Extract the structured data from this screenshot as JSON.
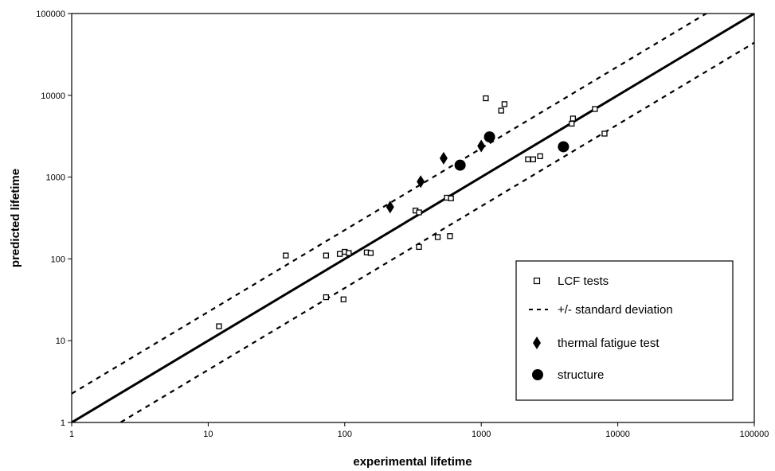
{
  "chart_data": {
    "type": "scatter",
    "title": "",
    "xlabel": "experimental lifetime",
    "ylabel": "predicted lifetime",
    "x_scale": "log",
    "y_scale": "log",
    "xlim": [
      1,
      100000
    ],
    "ylim": [
      1,
      100000
    ],
    "x_ticks": [
      "1",
      "10",
      "100",
      "1000",
      "10000",
      "100000"
    ],
    "y_ticks": [
      "1",
      "10",
      "100",
      "1000",
      "10000",
      "100000"
    ],
    "grid": false,
    "legend_position": "right",
    "series": [
      {
        "name": "LCF tests",
        "marker": "open-square",
        "color": "#000000",
        "points": [
          [
            12,
            15
          ],
          [
            37,
            110
          ],
          [
            73,
            110
          ],
          [
            73,
            34
          ],
          [
            92,
            115
          ],
          [
            98,
            32
          ],
          [
            100,
            122
          ],
          [
            107,
            118
          ],
          [
            145,
            120
          ],
          [
            155,
            118
          ],
          [
            330,
            390
          ],
          [
            350,
            370
          ],
          [
            350,
            140
          ],
          [
            480,
            185
          ],
          [
            560,
            560
          ],
          [
            600,
            550
          ],
          [
            590,
            190
          ],
          [
            1080,
            9200
          ],
          [
            1400,
            6500
          ],
          [
            1480,
            7800
          ],
          [
            2200,
            1650
          ],
          [
            2400,
            1650
          ],
          [
            2700,
            1800
          ],
          [
            4600,
            4500
          ],
          [
            4700,
            5200
          ],
          [
            6800,
            6800
          ],
          [
            8000,
            3400
          ]
        ]
      },
      {
        "name": "+/- standard deviation",
        "type": "line",
        "style": "dashed",
        "color": "#000000",
        "lines": [
          [
            [
              1,
              2.25
            ],
            [
              100000,
              225000
            ]
          ],
          [
            [
              1,
              0.44
            ],
            [
              100000,
              44000
            ]
          ]
        ]
      },
      {
        "name": "thermal fatigue test",
        "marker": "filled-diamond",
        "color": "#000000",
        "points": [
          [
            215,
            430
          ],
          [
            360,
            880
          ],
          [
            530,
            1700
          ],
          [
            1000,
            2400
          ]
        ]
      },
      {
        "name": "structure",
        "marker": "filled-circle",
        "color": "#000000",
        "points": [
          [
            700,
            1400
          ],
          [
            1150,
            3100
          ],
          [
            4000,
            2350
          ]
        ]
      }
    ],
    "reference_line": {
      "type": "line",
      "style": "solid",
      "color": "#000000",
      "points": [
        [
          1,
          1
        ],
        [
          100000,
          100000
        ]
      ]
    },
    "legend": {
      "entries": [
        {
          "label": "LCF tests",
          "symbol": "open-square"
        },
        {
          "label": "+/- standard deviation",
          "symbol": "dashed-line"
        },
        {
          "label": "thermal fatigue test",
          "symbol": "filled-diamond"
        },
        {
          "label": "structure",
          "symbol": "filled-circle"
        }
      ]
    }
  }
}
